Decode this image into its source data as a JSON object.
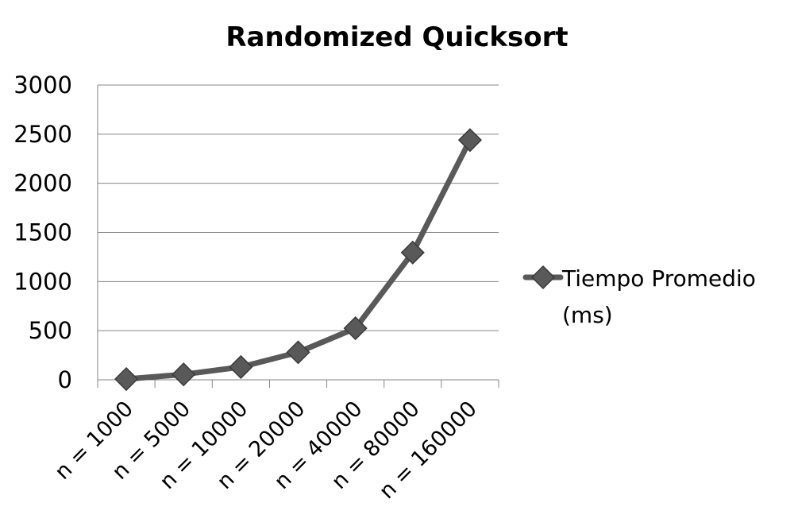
{
  "chart_data": {
    "type": "line",
    "title": "Randomized Quicksort",
    "xlabel": "",
    "ylabel": "",
    "categories": [
      "n = 1000",
      "n = 5000",
      "n = 10000",
      "n = 20000",
      "n = 40000",
      "n = 80000",
      "n = 160000"
    ],
    "series": [
      {
        "name": "Tiempo Promedio (ms)",
        "legend_lines": [
          "Tiempo Promedio",
          "(ms)"
        ],
        "values": [
          8,
          55,
          130,
          280,
          525,
          1295,
          2440
        ],
        "color": "#595959",
        "marker": "diamond"
      }
    ],
    "ylim": [
      0,
      3000
    ],
    "yticks": [
      0,
      500,
      1000,
      1500,
      2000,
      2500,
      3000
    ],
    "grid": true,
    "legend_position": "right"
  }
}
